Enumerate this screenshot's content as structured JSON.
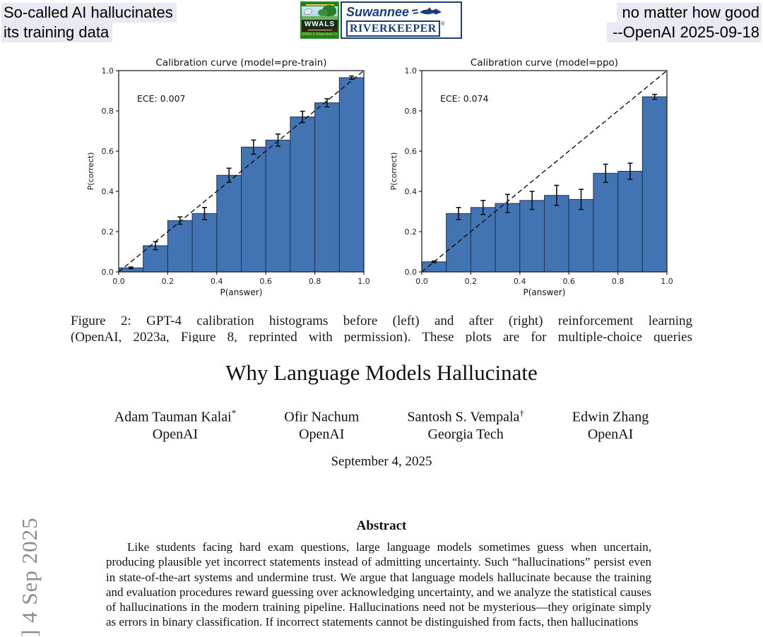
{
  "banner": {
    "left_line1": "So-called AI hallucinates",
    "left_line2": "its training data",
    "right_line1": "no matter how good",
    "right_line2": "--OpenAI 2025-09-18",
    "highlight_color": "#e9e9f3"
  },
  "logo": {
    "wwals_name": "WWALS",
    "wwals_coalition": "WWALS Watershed Coalition",
    "suwannee": "Suwannee",
    "riverkeeper": "RIVERKEEPER",
    "registered_mark": "®",
    "green": "#2f8f2f",
    "navy": "#1c3f77"
  },
  "chart_data": [
    {
      "type": "bar",
      "title": "Calibration curve (model=pre-train)",
      "annotation": "ECE: 0.007",
      "xlabel": "P(answer)",
      "ylabel": "P(correct)",
      "x": [
        0.05,
        0.15,
        0.25,
        0.35,
        0.45,
        0.55,
        0.65,
        0.75,
        0.85,
        0.95
      ],
      "values": [
        0.02,
        0.13,
        0.255,
        0.29,
        0.48,
        0.62,
        0.655,
        0.77,
        0.84,
        0.965
      ],
      "errors": [
        0.004,
        0.02,
        0.018,
        0.03,
        0.035,
        0.035,
        0.03,
        0.028,
        0.02,
        0.008
      ],
      "xlim": [
        0.0,
        1.0
      ],
      "ylim": [
        0.0,
        1.0
      ],
      "xticks": [
        "0.0",
        "0.2",
        "0.4",
        "0.6",
        "0.8",
        "1.0"
      ],
      "yticks": [
        "0.0",
        "0.2",
        "0.4",
        "0.6",
        "0.8",
        "1.0"
      ],
      "bar_color": "#4273b3",
      "bar_edge": "#1f3352",
      "diagonal": "dashed",
      "legend_position": "none",
      "grid": false
    },
    {
      "type": "bar",
      "title": "Calibration curve (model=ppo)",
      "annotation": "ECE: 0.074",
      "xlabel": "P(answer)",
      "ylabel": "P(correct)",
      "x": [
        0.05,
        0.15,
        0.25,
        0.35,
        0.45,
        0.55,
        0.65,
        0.75,
        0.85,
        0.95
      ],
      "values": [
        0.05,
        0.29,
        0.32,
        0.34,
        0.355,
        0.38,
        0.36,
        0.49,
        0.5,
        0.87
      ],
      "errors": [
        0.004,
        0.03,
        0.035,
        0.045,
        0.045,
        0.05,
        0.05,
        0.045,
        0.04,
        0.012
      ],
      "xlim": [
        0.0,
        1.0
      ],
      "ylim": [
        0.0,
        1.0
      ],
      "xticks": [
        "0.0",
        "0.2",
        "0.4",
        "0.6",
        "0.8",
        "1.0"
      ],
      "yticks": [
        "0.0",
        "0.2",
        "0.4",
        "0.6",
        "0.8",
        "1.0"
      ],
      "bar_color": "#4273b3",
      "bar_edge": "#1f3352",
      "diagonal": "dashed",
      "legend_position": "none",
      "grid": false
    }
  ],
  "figure": {
    "caption_line1": "Figure 2:  GPT-4 calibration histograms before (left) and after (right) reinforcement learning",
    "caption_line2": "(OpenAI, 2023a, Figure 8, reprinted with permission).  These plots are for multiple-choice queries"
  },
  "paper": {
    "title": "Why Language Models Hallucinate",
    "authors": [
      {
        "name": "Adam Tauman Kalai",
        "marker": "*",
        "affiliation": "OpenAI"
      },
      {
        "name": "Ofir Nachum",
        "marker": "",
        "affiliation": "OpenAI"
      },
      {
        "name": "Santosh S. Vempala",
        "marker": "†",
        "affiliation": "Georgia Tech"
      },
      {
        "name": "Edwin Zhang",
        "marker": "",
        "affiliation": "OpenAI"
      }
    ],
    "date": "September 4, 2025",
    "abstract_heading": "Abstract",
    "abstract_text": "Like students facing hard exam questions, large language models sometimes guess when uncertain, producing plausible yet incorrect statements instead of admitting uncertainty. Such “hallucinations” persist even in state-of-the-art systems and undermine trust. We argue that language models hallucinate because the training and evaluation procedures reward guessing over acknowledging uncertainty, and we analyze the statistical causes of hallucinations in the modern training pipeline. Hallucinations need not be mysterious—they originate simply as errors in binary classification. If incorrect statements cannot be distinguished from facts, then hallucinations",
    "arxiv_sidebar": "] 4 Sep 2025"
  }
}
